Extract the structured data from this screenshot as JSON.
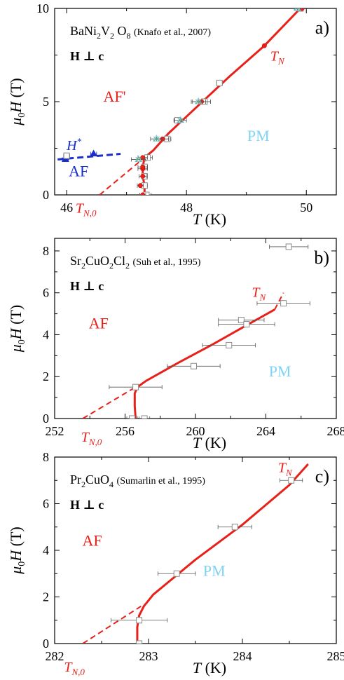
{
  "chart_data": [
    {
      "type": "scatter",
      "panel_label": "a)",
      "compound": "BaNi2V2O8",
      "compound_parts": [
        {
          "t": "BaNi",
          "sub": false
        },
        {
          "t": "2",
          "sub": true
        },
        {
          "t": "V",
          "sub": false
        },
        {
          "t": "2",
          "sub": true
        },
        {
          "t": " O",
          "sub": false
        },
        {
          "t": "8",
          "sub": true
        }
      ],
      "reference": "(Knafo et al., 2007)",
      "field_direction": "H ⊥ c",
      "xlabel_var": "T",
      "xlabel_unit": " (K)",
      "ylabel_prefix": "μ",
      "ylabel_sub": "0",
      "ylabel_var": "H",
      "ylabel_unit": " (T)",
      "xlim": [
        45.8,
        50.5
      ],
      "ylim": [
        0,
        10
      ],
      "xticks": [
        46,
        48,
        50
      ],
      "yticks": [
        0,
        5,
        10
      ],
      "region_labels": [
        {
          "text": "AF'",
          "color": "#e8201a",
          "x": 46.8,
          "y": 5.0
        },
        {
          "text": "PM",
          "color": "#7fd3f5",
          "x": 49.2,
          "y": 2.9
        },
        {
          "text": "AF",
          "color": "#1a2ecc",
          "x": 46.2,
          "y": 1.0
        }
      ],
      "tn_label": {
        "main": "T",
        "sub": "N",
        "x": 49.4,
        "y": 7.2
      },
      "tn0_label": {
        "main": "T",
        "sub": "N,0",
        "x": 46.15,
        "y": -0.95
      },
      "hstar_label": {
        "main": "H",
        "sup": "*",
        "x": 46.0,
        "y": 2.4
      },
      "colors": {
        "phase_boundary": "#e8201a",
        "af_line": "#1a2ecc",
        "pm": "#7fd3f5",
        "square": "#8a8a8a",
        "tri_cyan": "#6bc3e8",
        "tri_green": "#63b873"
      },
      "phase_boundary": {
        "x": [
          47.3,
          47.3,
          47.27,
          47.27,
          47.3,
          47.45,
          47.7,
          48.2,
          48.7,
          49.3,
          49.9
        ],
        "y": [
          0,
          0.5,
          1.0,
          1.5,
          2.0,
          2.4,
          3.3,
          4.8,
          6.3,
          8.0,
          10.0
        ]
      },
      "phase_boundary_extrapolation": {
        "x": [
          46.55,
          47.3
        ],
        "y": [
          0,
          2.0
        ]
      },
      "af_boundary": {
        "x": [
          45.85,
          46.9
        ],
        "y": [
          1.9,
          2.2
        ]
      },
      "series": [
        {
          "name": "",
          "marker": "square",
          "x": [
            47.33,
            47.3,
            47.3,
            47.3,
            47.35,
            47.68,
            47.85,
            48.3,
            48.55,
            49.9
          ],
          "y": [
            0,
            0.5,
            1.0,
            1.5,
            2.0,
            3.0,
            4.0,
            5.0,
            6.0,
            10.0
          ],
          "xerr": [
            0.08,
            0.05,
            0.05,
            0.05,
            0.08,
            0.06,
            0.06,
            0.1,
            0.05,
            0.05
          ]
        },
        {
          "name": "",
          "marker": "circle",
          "x": [
            47.27,
            47.23,
            47.27,
            47.27,
            47.27,
            47.27,
            47.6,
            48.25,
            49.3,
            49.93
          ],
          "y": [
            0,
            0.5,
            1.0,
            1.4,
            1.5,
            2.0,
            3.0,
            5.0,
            8.0,
            10.0
          ],
          "xerr": [
            0.05,
            0.05,
            0.06,
            0.08,
            0.08,
            0.08,
            0.1,
            0.15,
            0,
            0
          ]
        },
        {
          "name": "",
          "marker": "triangle",
          "x": [
            47.2,
            47.5,
            47.9,
            48.2,
            49.85
          ],
          "y": [
            1.9,
            3.0,
            4.0,
            5.0,
            10.0
          ],
          "xerr": [
            0.12,
            0.1,
            0.1,
            0.12,
            0.05
          ]
        },
        {
          "name": "",
          "marker": "af_triangle",
          "x": [
            45.98,
            46.0,
            46.45
          ],
          "y": [
            1.9,
            2.05,
            2.2
          ],
          "xerr": [
            0.05,
            0.05,
            0.05
          ]
        },
        {
          "name": "",
          "marker": "af_square",
          "x": [
            46.0
          ],
          "y": [
            2.1
          ],
          "xerr": [
            0.05
          ]
        }
      ]
    },
    {
      "type": "scatter",
      "panel_label": "b)",
      "compound": "Sr2CuO2Cl2",
      "compound_parts": [
        {
          "t": "Sr",
          "sub": false
        },
        {
          "t": "2",
          "sub": true
        },
        {
          "t": "CuO",
          "sub": false
        },
        {
          "t": "2",
          "sub": true
        },
        {
          "t": "Cl",
          "sub": false
        },
        {
          "t": "2",
          "sub": true
        }
      ],
      "reference": "(Suh et al., 1995)",
      "field_direction": "H ⊥ c",
      "xlabel_var": "T",
      "xlabel_unit": " (K)",
      "ylabel_prefix": "μ",
      "ylabel_sub": "0",
      "ylabel_var": "H",
      "ylabel_unit": " (T)",
      "xlim": [
        252,
        268
      ],
      "ylim": [
        0,
        8.6
      ],
      "xticks": [
        252,
        256,
        260,
        264,
        268
      ],
      "yticks": [
        0,
        2,
        4,
        6,
        8
      ],
      "region_labels": [
        {
          "text": "AF",
          "color": "#e8201a",
          "x": 254.5,
          "y": 4.3
        },
        {
          "text": "PM",
          "color": "#7fd3f5",
          "x": 264.8,
          "y": 2.0
        }
      ],
      "tn_label": {
        "main": "T",
        "sub": "N",
        "x": 263.2,
        "y": 5.8
      },
      "tn0_label": {
        "main": "T",
        "sub": "N,0",
        "x": 253.5,
        "y": -1.1
      },
      "hstar_label": null,
      "colors": {
        "phase_boundary": "#e8201a",
        "pm": "#7fd3f5",
        "square": "#8a8a8a"
      },
      "phase_boundary": {
        "x": [
          256.6,
          256.55,
          256.55,
          256.7,
          257.2,
          259.0,
          261.0,
          263.0,
          264.5
        ],
        "y": [
          0,
          0.6,
          1.2,
          1.5,
          1.8,
          2.65,
          3.55,
          4.5,
          5.2
        ]
      },
      "phase_boundary_extrapolation": {
        "x": [
          253.6,
          256.6
        ],
        "y": [
          0,
          1.5
        ]
      },
      "phase_boundary_upper_extrapolation": {
        "x": [
          264.5,
          265.0
        ],
        "y": [
          5.2,
          6.0
        ]
      },
      "af_boundary": null,
      "series": [
        {
          "name": "",
          "marker": "square",
          "x": [
            256.4,
            257.1,
            256.6,
            259.9,
            261.9,
            262.6,
            262.9,
            265.0,
            265.3
          ],
          "y": [
            0,
            0,
            1.5,
            2.5,
            3.5,
            4.7,
            4.5,
            5.5,
            8.2
          ],
          "xerr": [
            0.3,
            0.3,
            1.5,
            1.5,
            1.5,
            1.3,
            1.6,
            1.5,
            1.1
          ]
        }
      ]
    },
    {
      "type": "scatter",
      "panel_label": "c)",
      "compound": "Pr2CuO4",
      "compound_parts": [
        {
          "t": "Pr",
          "sub": false
        },
        {
          "t": "2",
          "sub": true
        },
        {
          "t": "CuO",
          "sub": false
        },
        {
          "t": "4",
          "sub": true
        }
      ],
      "reference": "(Sumarlin et al., 1995)",
      "field_direction": "H ⊥ c",
      "xlabel_var": "T",
      "xlabel_unit": " (K)",
      "ylabel_prefix": "μ",
      "ylabel_sub": "0",
      "ylabel_var": "H",
      "ylabel_unit": " (T)",
      "xlim": [
        282,
        285
      ],
      "ylim": [
        0,
        8
      ],
      "xticks": [
        282,
        283,
        284,
        285
      ],
      "yticks": [
        0,
        2,
        4,
        6,
        8
      ],
      "region_labels": [
        {
          "text": "AF",
          "color": "#e8201a",
          "x": 282.4,
          "y": 4.2
        },
        {
          "text": "PM",
          "color": "#7fd3f5",
          "x": 283.7,
          "y": 2.9
        }
      ],
      "tn_label": {
        "main": "T",
        "sub": "N",
        "x": 284.38,
        "y": 7.35
      },
      "tn0_label": {
        "main": "T",
        "sub": "N,0",
        "x": 282.1,
        "y": -1.2
      },
      "hstar_label": null,
      "colors": {
        "phase_boundary": "#e8201a",
        "pm": "#7fd3f5",
        "square": "#8a8a8a"
      },
      "phase_boundary": {
        "x": [
          282.88,
          282.88,
          282.9,
          282.95,
          283.05,
          283.5,
          284.0,
          284.5,
          284.7
        ],
        "y": [
          0,
          0.7,
          1.2,
          1.6,
          2.1,
          3.6,
          5.1,
          6.8,
          7.7
        ]
      },
      "phase_boundary_extrapolation": {
        "x": [
          282.3,
          282.92
        ],
        "y": [
          0,
          1.6
        ]
      },
      "af_boundary": null,
      "series": [
        {
          "name": "",
          "marker": "square",
          "x": [
            282.9,
            282.9,
            283.3,
            283.92,
            284.52
          ],
          "y": [
            0,
            1.0,
            3.0,
            5.0,
            7.0
          ],
          "xerr": [
            0.01,
            0.3,
            0.2,
            0.18,
            0.12
          ]
        }
      ]
    }
  ]
}
